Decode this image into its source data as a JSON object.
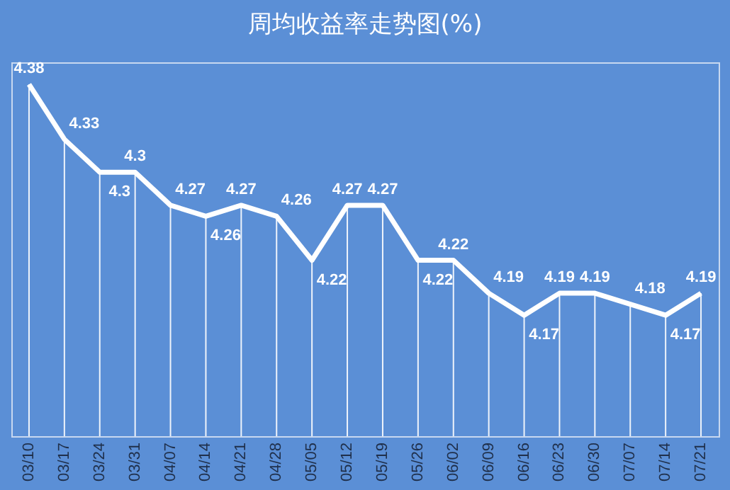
{
  "chart_data": {
    "type": "line",
    "title": "周均收益率走势图(%)",
    "categories": [
      "03/10",
      "03/17",
      "03/24",
      "03/31",
      "04/07",
      "04/14",
      "04/21",
      "04/28",
      "05/05",
      "05/12",
      "05/19",
      "05/26",
      "06/02",
      "06/09",
      "06/16",
      "06/23",
      "06/30",
      "07/07",
      "07/14",
      "07/21"
    ],
    "series": [
      {
        "color": "#ffffff",
        "values": [
          4.38,
          4.33,
          4.3,
          4.3,
          4.27,
          4.26,
          4.27,
          4.26,
          4.22,
          4.27,
          4.27,
          4.22,
          4.22,
          4.19,
          4.17,
          4.19,
          4.19,
          4.18,
          4.17,
          4.19
        ]
      }
    ],
    "ylim": [
      4.06,
      4.4
    ],
    "data_labels": true,
    "tick_labels": "x",
    "grid": "x",
    "marker": "none",
    "line_style": "solid"
  }
}
